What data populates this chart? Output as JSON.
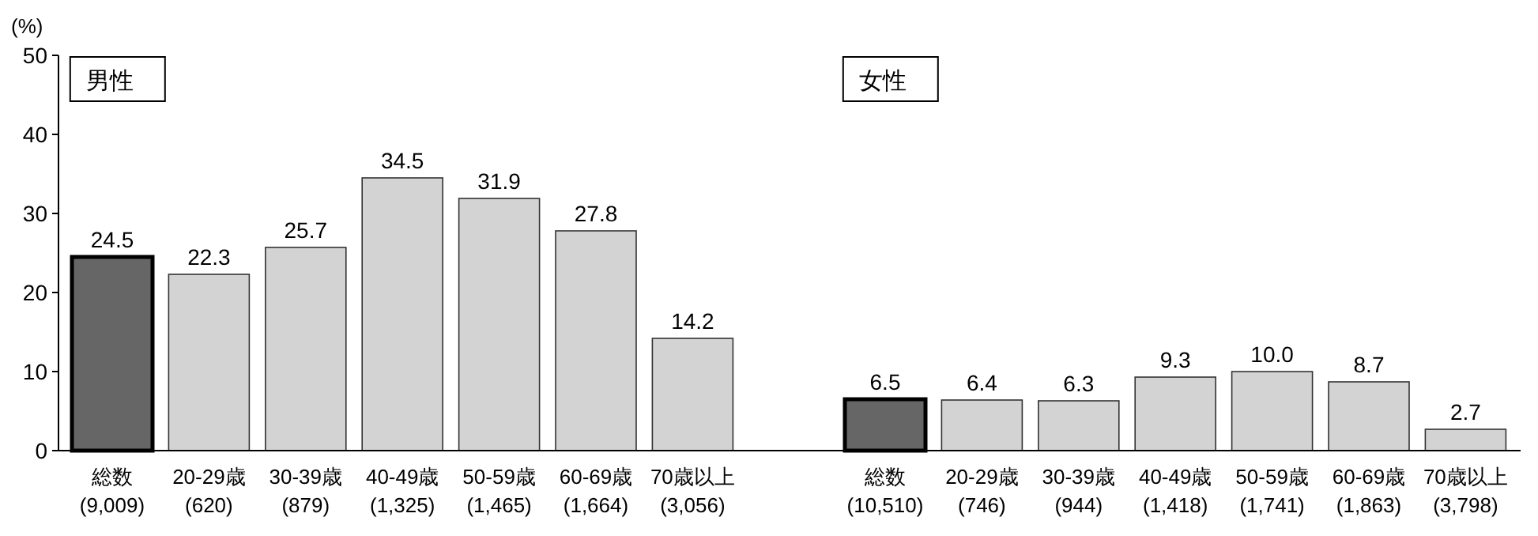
{
  "chart_data": [
    {
      "type": "bar",
      "title": "男性",
      "ylabel": "(%)",
      "categories": [
        "総数\n(9,009)",
        "20-29歳\n(620)",
        "30-39歳\n(879)",
        "40-49歳\n(1,325)",
        "50-59歳\n(1,465)",
        "60-69歳\n(1,664)",
        "70歳以上\n(3,056)"
      ],
      "values": [
        24.5,
        22.3,
        25.7,
        34.5,
        31.9,
        27.8,
        14.2
      ],
      "value_labels": [
        "24.5",
        "22.3",
        "25.7",
        "34.5",
        "31.9",
        "27.8",
        "14.2"
      ],
      "colors": [
        "#666666",
        "#d3d3d3",
        "#d3d3d3",
        "#d3d3d3",
        "#d3d3d3",
        "#d3d3d3",
        "#d3d3d3"
      ],
      "ylim": [
        0,
        50
      ],
      "yticks": [
        0,
        10,
        20,
        30,
        40,
        50
      ]
    },
    {
      "type": "bar",
      "title": "女性",
      "categories": [
        "総数\n(10,510)",
        "20-29歳\n(746)",
        "30-39歳\n(944)",
        "40-49歳\n(1,418)",
        "50-59歳\n(1,741)",
        "60-69歳\n(1,863)",
        "70歳以上\n(3,798)"
      ],
      "values": [
        6.5,
        6.4,
        6.3,
        9.3,
        10.0,
        8.7,
        2.7
      ],
      "value_labels": [
        "6.5",
        "6.4",
        "6.3",
        "9.3",
        "10.0",
        "8.7",
        "2.7"
      ],
      "colors": [
        "#666666",
        "#d3d3d3",
        "#d3d3d3",
        "#d3d3d3",
        "#d3d3d3",
        "#d3d3d3",
        "#d3d3d3"
      ],
      "ylim": [
        0,
        50
      ],
      "tick_labels": "x"
    }
  ]
}
